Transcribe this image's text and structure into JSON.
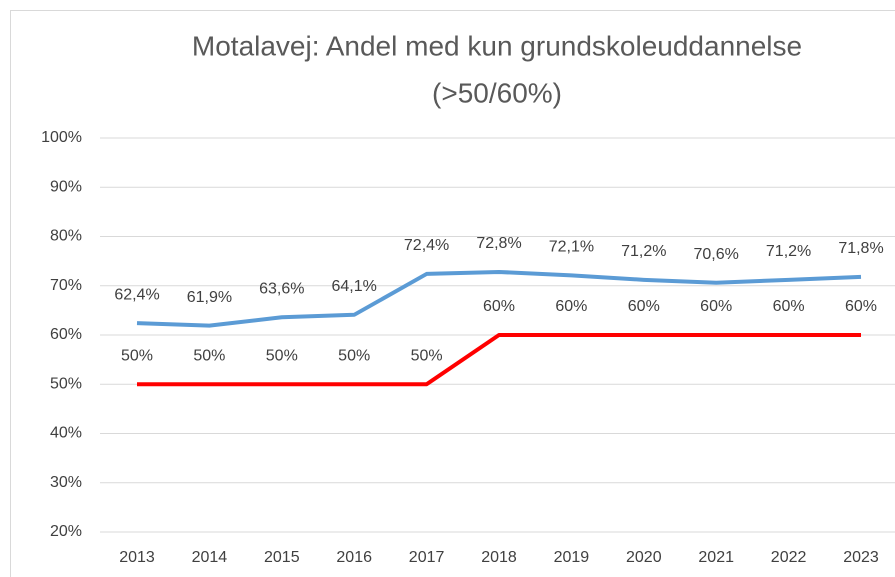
{
  "chart_data": {
    "type": "line",
    "title": [
      "Motalavej: Andel med kun grundskoleuddannelse",
      "(>50/60%)"
    ],
    "categories": [
      "2013",
      "2014",
      "2015",
      "2016",
      "2017",
      "2018",
      "2019",
      "2020",
      "2021",
      "2022",
      "2023"
    ],
    "series": [
      {
        "color": "#5b9bd5",
        "values": [
          62.4,
          61.9,
          63.6,
          64.1,
          72.4,
          72.8,
          72.1,
          71.2,
          70.6,
          71.2,
          71.8
        ],
        "value_labels": [
          "62,4%",
          "61,9%",
          "63,6%",
          "64,1%",
          "72,4%",
          "72,8%",
          "72,1%",
          "71,2%",
          "70,6%",
          "71,2%",
          "71,8%"
        ]
      },
      {
        "color": "#ff0000",
        "values": [
          50,
          50,
          50,
          50,
          50,
          60,
          60,
          60,
          60,
          60,
          60
        ],
        "value_labels": [
          "50%",
          "50%",
          "50%",
          "50%",
          "50%",
          "60%",
          "60%",
          "60%",
          "60%",
          "60%",
          "60%"
        ]
      }
    ],
    "ylim": [
      20,
      100
    ],
    "yticks": [
      {
        "value": 20,
        "label": "20%"
      },
      {
        "value": 30,
        "label": "30%"
      },
      {
        "value": 40,
        "label": "40%"
      },
      {
        "value": 50,
        "label": "50%"
      },
      {
        "value": 60,
        "label": "60%"
      },
      {
        "value": 70,
        "label": "70%"
      },
      {
        "value": 80,
        "label": "80%"
      },
      {
        "value": 90,
        "label": "90%"
      },
      {
        "value": 100,
        "label": "100%"
      }
    ],
    "grid": true
  }
}
